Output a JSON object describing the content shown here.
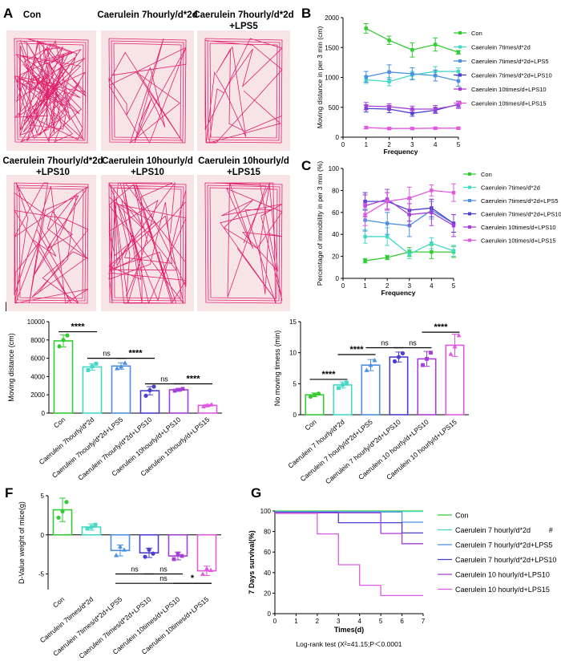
{
  "figure": {
    "panels": {
      "A": "A",
      "B": "B",
      "C": "C",
      "D": "D",
      "E": "E",
      "F": "F",
      "G": "G"
    }
  },
  "panel_A": {
    "labels": [
      {
        "line1": "Con",
        "line2": ""
      },
      {
        "line1": "Caerulein 7hourly/d*2d",
        "line2": ""
      },
      {
        "line1": "Caerulein 7hourly/d*2d",
        "line2": "+LPS5"
      },
      {
        "line1": "Caerulein 7hourly/d*2d",
        "line2": "+LPS10"
      },
      {
        "line1": "Caerulein 10hourly/d",
        "line2": "+LPS10"
      },
      {
        "line1": "Caerulein 10hourly/d",
        "line2": "+LPS15"
      }
    ],
    "colors": {
      "trace": "#e0216e",
      "background": "#f7e4e6"
    }
  },
  "chart_data": [
    {
      "id": "B",
      "type": "line",
      "ylabel": "Moving distance in per 3 min (cm)",
      "xlabel": "Frequency",
      "x": [
        1,
        2,
        3,
        4,
        5
      ],
      "xlim": [
        0,
        5
      ],
      "ylim": [
        0,
        2000
      ],
      "yticks": [
        0,
        500,
        1000,
        1500,
        2000
      ],
      "xticks": [
        0,
        1,
        2,
        3,
        4,
        5
      ],
      "series": [
        {
          "name": "Con",
          "color": "#33cc33",
          "values": [
            1820,
            1620,
            1460,
            1550,
            1420
          ],
          "err": [
            80,
            70,
            120,
            110,
            30
          ]
        },
        {
          "name": "Caerulein 7times/d*2d",
          "color": "#44d9c4",
          "values": [
            960,
            930,
            1040,
            1100,
            1100
          ],
          "err": [
            60,
            70,
            60,
            80,
            60
          ]
        },
        {
          "name": "Caerulein 7times/d*2d+LPS5",
          "color": "#4d8fe0",
          "values": [
            1010,
            1090,
            1060,
            1030,
            940
          ],
          "err": [
            90,
            120,
            100,
            90,
            90
          ]
        },
        {
          "name": "Caerulein 7times/d*2d+LPS10",
          "color": "#4b3fd1",
          "values": [
            480,
            470,
            400,
            450,
            550
          ],
          "err": [
            60,
            60,
            50,
            50,
            50
          ]
        },
        {
          "name": "Caerulein 10times/d+LPS10",
          "color": "#a63fd6",
          "values": [
            520,
            510,
            470,
            470,
            540
          ],
          "err": [
            60,
            50,
            50,
            60,
            60
          ]
        },
        {
          "name": "Caerulein 10times/d+LPS15",
          "color": "#e05ae0",
          "values": [
            160,
            145,
            145,
            150,
            150
          ],
          "err": [
            20,
            15,
            15,
            15,
            15
          ]
        }
      ]
    },
    {
      "id": "C",
      "type": "line",
      "ylabel": "Percentage of immobility in per 3 min (%)",
      "xlabel": "Frequency",
      "x": [
        1,
        2,
        3,
        4,
        5
      ],
      "xlim": [
        0,
        5
      ],
      "ylim": [
        0,
        100
      ],
      "yticks": [
        0,
        20,
        40,
        60,
        80,
        100
      ],
      "xticks": [
        0,
        1,
        2,
        3,
        4,
        5
      ],
      "series": [
        {
          "name": "Con",
          "color": "#33cc33",
          "values": [
            16,
            19,
            24,
            24,
            24
          ],
          "err": [
            2,
            2,
            4,
            6,
            5
          ]
        },
        {
          "name": "Caerulein 7times/d*2d",
          "color": "#44d9c4",
          "values": [
            38,
            38,
            22,
            32,
            25
          ],
          "err": [
            6,
            8,
            4,
            5,
            5
          ]
        },
        {
          "name": "Caerulein 7times/d*2d+LPS5",
          "color": "#4d8fe0",
          "values": [
            53,
            50,
            48,
            62,
            50
          ],
          "err": [
            10,
            10,
            10,
            8,
            8
          ]
        },
        {
          "name": "Caerulein 7times/d*2d+LPS10",
          "color": "#4b3fd1",
          "values": [
            70,
            70,
            62,
            64,
            50
          ],
          "err": [
            8,
            8,
            10,
            8,
            8
          ]
        },
        {
          "name": "Caerulein 10times/d+LPS10",
          "color": "#a63fd6",
          "values": [
            66,
            72,
            58,
            60,
            48
          ],
          "err": [
            10,
            9,
            10,
            12,
            10
          ]
        },
        {
          "name": "Caerulein 10times/d+LPS15",
          "color": "#e05ae0",
          "values": [
            58,
            70,
            73,
            80,
            78
          ],
          "err": [
            10,
            8,
            10,
            5,
            8
          ]
        }
      ]
    },
    {
      "id": "D",
      "type": "bar",
      "ylabel": "Moving distance (cm)",
      "ylim": [
        0,
        10000
      ],
      "yticks": [
        0,
        2000,
        4000,
        6000,
        8000,
        10000
      ],
      "categories": [
        "Con",
        "Caerulein 7hourly/d*2d",
        "Caerulein 7hourly/d*2d+LPS5",
        "Caerulein 7hourly/d*2d+LPS10",
        "Caerulein 10hourly/d+LPS10",
        "Caerulein 10hourly/d+LPS15"
      ],
      "colors": [
        "#33cc33",
        "#44d9c4",
        "#4d8fe0",
        "#4b3fd1",
        "#a63fd6",
        "#e05ae0"
      ],
      "values": [
        7900,
        5050,
        5150,
        2450,
        2550,
        850
      ],
      "err": [
        650,
        350,
        350,
        450,
        150,
        100
      ],
      "points": [
        [
          7300,
          8000,
          8500
        ],
        [
          4700,
          5100,
          5400
        ],
        [
          4900,
          5100,
          5500
        ],
        [
          1900,
          2500,
          2900
        ],
        [
          2450,
          2550,
          2650
        ],
        [
          750,
          850,
          950
        ]
      ],
      "significance": [
        {
          "from": 0,
          "to": 1,
          "label": "****",
          "level": 8900
        },
        {
          "from": 1,
          "to": 2,
          "label": "ns",
          "level": 6000
        },
        {
          "from": 2,
          "to": 3,
          "label": "****",
          "level": 6000
        },
        {
          "from": 3,
          "to": 4,
          "label": "ns",
          "level": 3200
        },
        {
          "from": 4,
          "to": 5,
          "label": "****",
          "level": 3200
        }
      ]
    },
    {
      "id": "E",
      "type": "bar",
      "ylabel": "No moving timess (min)",
      "ylim": [
        0,
        15
      ],
      "yticks": [
        0,
        5,
        10,
        15
      ],
      "categories": [
        "Con",
        "Caerulein 7 hourly/d*2d",
        "Caerulein 7 hourly/d*2d+LPS5",
        "Caerulein 7 hourly/d*2d+LPS10",
        "Caerulein 10 hourly/d+LPS10",
        "Caerulein 10 hourly/d+LPS15"
      ],
      "colors": [
        "#33cc33",
        "#44d9c4",
        "#4d8fe0",
        "#4b3fd1",
        "#a63fd6",
        "#e05ae0"
      ],
      "values": [
        3.2,
        4.8,
        8.0,
        9.3,
        9.0,
        11.2
      ],
      "err": [
        0.3,
        0.5,
        0.9,
        0.8,
        1.2,
        1.8
      ],
      "points": [
        [
          2.9,
          3.2,
          3.4
        ],
        [
          4.3,
          4.8,
          5.2
        ],
        [
          7.2,
          8.0,
          8.8
        ],
        [
          8.6,
          9.3,
          9.9
        ],
        [
          8.0,
          9.0,
          10.0
        ],
        [
          9.8,
          11.0,
          12.8
        ]
      ],
      "significance": [
        {
          "from": 0,
          "to": 1,
          "label": "****",
          "level": 5.7
        },
        {
          "from": 1,
          "to": 2,
          "label": "****",
          "level": 9.7
        },
        {
          "from": 2,
          "to": 3,
          "label": "ns",
          "level": 10.8
        },
        {
          "from": 3,
          "to": 4,
          "label": "ns",
          "level": 10.8
        },
        {
          "from": 4,
          "to": 5,
          "label": "****",
          "level": 13.3
        }
      ]
    },
    {
      "id": "F",
      "type": "bar",
      "ylabel": "D-Value weight of mice(g)",
      "ylim": [
        -7,
        5
      ],
      "yticks": [
        -5,
        0,
        5
      ],
      "categories": [
        "Con",
        "Caerulein 7times/d*2d",
        "Caerulein 7times/d*2d+LPS5",
        "Caerulein 7times/d*2d+LPS10",
        "Caerulein 10times/d+LPS10",
        "Caerulein 10times/d+LPS15"
      ],
      "colors": [
        "#33cc33",
        "#44d9c4",
        "#4d8fe0",
        "#4b3fd1",
        "#a63fd6",
        "#e05ae0"
      ],
      "values": [
        3.2,
        1.0,
        -2.0,
        -2.3,
        -2.7,
        -4.6
      ],
      "err": [
        1.5,
        0.4,
        0.7,
        0.6,
        0.5,
        0.6
      ],
      "points": [
        [
          2.2,
          3.0,
          4.2
        ],
        [
          0.8,
          1.0,
          1.3
        ],
        [
          -2.6,
          -1.5,
          -1.9
        ],
        [
          -2.8,
          -1.9,
          -2.4
        ],
        [
          -3.1,
          -2.4,
          -2.7
        ],
        [
          -5.0,
          -4.3,
          -4.5
        ]
      ],
      "significance": [
        {
          "from": 2,
          "to": 3,
          "label": "ns",
          "level": -5.0
        },
        {
          "from": 3,
          "to": 4,
          "label": "ns",
          "level": -5.0
        },
        {
          "from": 2,
          "to": 5,
          "label": "ns",
          "level": -6.2
        },
        {
          "from": 4,
          "to": 5,
          "label": "*",
          "level": -6.2
        }
      ]
    },
    {
      "id": "G",
      "type": "line",
      "subtype": "kaplan-meier",
      "ylabel": "7 Days survival(%)",
      "xlabel": "Times(d)",
      "xlim": [
        0,
        7
      ],
      "ylim": [
        0,
        100
      ],
      "xticks": [
        0,
        1,
        2,
        3,
        4,
        5,
        6,
        7
      ],
      "yticks": [
        0,
        20,
        40,
        60,
        80,
        100
      ],
      "annotation": "Log-rank test (X²=41.15;P＜0.0001",
      "series": [
        {
          "name": "Con",
          "mark": "",
          "color": "#33cc33",
          "steps": [
            [
              0,
              100
            ],
            [
              7,
              100
            ]
          ]
        },
        {
          "name": "Caerulein 7 hourly/d*2d",
          "mark": "#",
          "color": "#44d9c4",
          "steps": [
            [
              0,
              100
            ],
            [
              7,
              100
            ]
          ]
        },
        {
          "name": "Caerulein 7 hourly/d*2d+LPS5",
          "mark": "#",
          "color": "#4d8fe0",
          "steps": [
            [
              0,
              100
            ],
            [
              6,
              100
            ],
            [
              6,
              90
            ],
            [
              7,
              90
            ]
          ]
        },
        {
          "name": "Caerulein 7 hourly/d*2d+LPS10",
          "mark": "#",
          "color": "#4b3fd1",
          "steps": [
            [
              0,
              100
            ],
            [
              3,
              100
            ],
            [
              3,
              90
            ],
            [
              6,
              90
            ],
            [
              6,
              80
            ],
            [
              7,
              80
            ]
          ]
        },
        {
          "name": "Caerulein 10 hourly/d+LPS10",
          "mark": "#",
          "color": "#a63fd6",
          "steps": [
            [
              0,
              100
            ],
            [
              5,
              100
            ],
            [
              5,
              80
            ],
            [
              6,
              80
            ],
            [
              6,
              70
            ],
            [
              7,
              70
            ]
          ]
        },
        {
          "name": "Caerulein 10 hourly/d+LPS15",
          "mark": "****",
          "color": "#e05ae0",
          "steps": [
            [
              0,
              100
            ],
            [
              2,
              100
            ],
            [
              2,
              80
            ],
            [
              3,
              80
            ],
            [
              3,
              50
            ],
            [
              4,
              50
            ],
            [
              4,
              30
            ],
            [
              5,
              30
            ],
            [
              5,
              20
            ],
            [
              7,
              20
            ]
          ]
        }
      ]
    }
  ]
}
